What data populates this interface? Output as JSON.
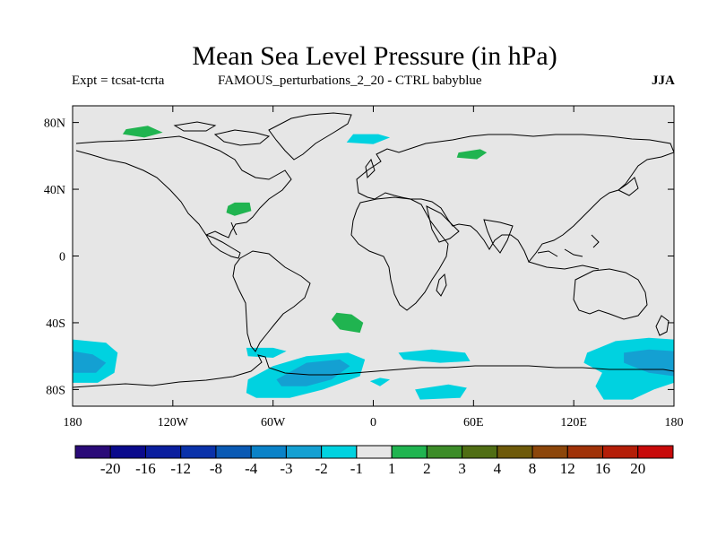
{
  "title": "Mean Sea Level Pressure (in hPa)",
  "subtitle_left": "Expt = tcsat-tcrta",
  "subtitle_center": "FAMOUS_perturbations_2_20 - CTRL babyblue",
  "season": "JJA",
  "chart_data": {
    "type": "map",
    "projection": "cylindrical-equidistant",
    "lon_range": [
      -180,
      180
    ],
    "lat_range": [
      -90,
      90
    ],
    "x_ticks": [
      {
        "lon": -180,
        "label": "180"
      },
      {
        "lon": -120,
        "label": "120W"
      },
      {
        "lon": -60,
        "label": "60W"
      },
      {
        "lon": 0,
        "label": "0"
      },
      {
        "lon": 60,
        "label": "60E"
      },
      {
        "lon": 120,
        "label": "120E"
      },
      {
        "lon": 180,
        "label": "180"
      }
    ],
    "y_ticks": [
      {
        "lat": 80,
        "label": "80N"
      },
      {
        "lat": 40,
        "label": "40N"
      },
      {
        "lat": 0,
        "label": "0"
      },
      {
        "lat": -40,
        "label": "40S"
      },
      {
        "lat": -80,
        "label": "80S"
      }
    ],
    "colorbar": {
      "colors": [
        "#2a0a78",
        "#0a0a8c",
        "#0a1e9e",
        "#0a32aa",
        "#0a5ab4",
        "#0a82c8",
        "#14a0d2",
        "#00d2e0",
        "#e6e6e6",
        "#20b450",
        "#3c8c28",
        "#506e14",
        "#6e5a0a",
        "#8c460a",
        "#a03208",
        "#b41e08",
        "#c80a0a"
      ],
      "labels": [
        "-20",
        "-16",
        "-12",
        "-8",
        "-4",
        "-3",
        "-2",
        "-1",
        "1",
        "2",
        "3",
        "4",
        "8",
        "12",
        "16",
        "20"
      ]
    },
    "anomaly_regions": [
      {
        "name": "greenland-north",
        "level": "1 to 2",
        "color": "#20b450",
        "points": [
          [
            -148,
            76
          ],
          [
            -135,
            78
          ],
          [
            -126,
            74
          ],
          [
            -137,
            71
          ],
          [
            -150,
            73
          ]
        ]
      },
      {
        "name": "arctic-barents",
        "level": "-2 to -1",
        "color": "#00d2e0",
        "points": [
          [
            -12,
            73
          ],
          [
            3,
            73
          ],
          [
            10,
            71
          ],
          [
            0,
            67
          ],
          [
            -16,
            68
          ]
        ]
      },
      {
        "name": "siberia",
        "level": "1 to 2",
        "color": "#20b450",
        "points": [
          [
            51,
            62
          ],
          [
            64,
            64
          ],
          [
            68,
            62
          ],
          [
            62,
            58
          ],
          [
            50,
            59
          ]
        ]
      },
      {
        "name": "caribbean",
        "level": "1 to 2",
        "color": "#20b450",
        "points": [
          [
            -87,
            30
          ],
          [
            -83,
            32
          ],
          [
            -74,
            32
          ],
          [
            -73,
            27
          ],
          [
            -83,
            24
          ],
          [
            -88,
            26
          ]
        ]
      },
      {
        "name": "south-atlantic",
        "level": "1 to 2",
        "color": "#20b450",
        "points": [
          [
            -22,
            -34
          ],
          [
            -13,
            -35
          ],
          [
            -6,
            -40
          ],
          [
            -8,
            -46
          ],
          [
            -20,
            -44
          ],
          [
            -25,
            -38
          ]
        ]
      },
      {
        "name": "amundsen-ring",
        "level": "-2 to -1",
        "color": "#00d2e0",
        "points": [
          [
            -180,
            -50
          ],
          [
            -160,
            -52
          ],
          [
            -153,
            -58
          ],
          [
            -155,
            -70
          ],
          [
            -165,
            -76
          ],
          [
            -180,
            -76
          ]
        ]
      },
      {
        "name": "amundsen-core",
        "level": "-3 to -2",
        "color": "#14a0d2",
        "points": [
          [
            -180,
            -57
          ],
          [
            -168,
            -59
          ],
          [
            -160,
            -64
          ],
          [
            -166,
            -70
          ],
          [
            -180,
            -70
          ]
        ]
      },
      {
        "name": "drake-patch",
        "level": "-2 to -1",
        "color": "#00d2e0",
        "points": [
          [
            -76,
            -55
          ],
          [
            -60,
            -55
          ],
          [
            -52,
            -57
          ],
          [
            -60,
            -61
          ],
          [
            -75,
            -60
          ]
        ]
      },
      {
        "name": "weddell-ring",
        "level": "-2 to -1",
        "color": "#00d2e0",
        "points": [
          [
            -75,
            -74
          ],
          [
            -60,
            -66
          ],
          [
            -40,
            -60
          ],
          [
            -15,
            -58
          ],
          [
            -5,
            -62
          ],
          [
            -8,
            -72
          ],
          [
            -30,
            -80
          ],
          [
            -50,
            -85
          ],
          [
            -70,
            -85
          ],
          [
            -76,
            -82
          ]
        ]
      },
      {
        "name": "weddell-core",
        "level": "-3 to -2",
        "color": "#14a0d2",
        "points": [
          [
            -58,
            -74
          ],
          [
            -40,
            -64
          ],
          [
            -20,
            -62
          ],
          [
            -14,
            -66
          ],
          [
            -25,
            -74
          ],
          [
            -40,
            -78
          ],
          [
            -55,
            -78
          ]
        ]
      },
      {
        "name": "south-indian-patch",
        "level": "-2 to -1",
        "color": "#00d2e0",
        "points": [
          [
            15,
            -58
          ],
          [
            35,
            -56
          ],
          [
            55,
            -58
          ],
          [
            58,
            -63
          ],
          [
            40,
            -64
          ],
          [
            18,
            -62
          ]
        ]
      },
      {
        "name": "enderby-patch",
        "level": "-2 to -1",
        "color": "#00d2e0",
        "points": [
          [
            4,
            -73
          ],
          [
            10,
            -74
          ],
          [
            4,
            -78
          ],
          [
            -2,
            -75
          ]
        ]
      },
      {
        "name": "east-antarctic-patch",
        "level": "-2 to -1",
        "color": "#00d2e0",
        "points": [
          [
            25,
            -80
          ],
          [
            45,
            -77
          ],
          [
            56,
            -79
          ],
          [
            52,
            -85
          ],
          [
            28,
            -86
          ]
        ]
      },
      {
        "name": "pacific-sector-ring",
        "level": "-2 to -1",
        "color": "#00d2e0",
        "points": [
          [
            128,
            -58
          ],
          [
            145,
            -51
          ],
          [
            165,
            -49
          ],
          [
            180,
            -50
          ],
          [
            180,
            -76
          ],
          [
            168,
            -80
          ],
          [
            155,
            -86
          ],
          [
            138,
            -86
          ],
          [
            133,
            -78
          ],
          [
            137,
            -70
          ],
          [
            126,
            -64
          ]
        ]
      },
      {
        "name": "pacific-sector-core",
        "level": "-3 to -2",
        "color": "#14a0d2",
        "points": [
          [
            150,
            -58
          ],
          [
            165,
            -56
          ],
          [
            180,
            -57
          ],
          [
            180,
            -72
          ],
          [
            165,
            -70
          ],
          [
            150,
            -64
          ]
        ]
      }
    ]
  }
}
